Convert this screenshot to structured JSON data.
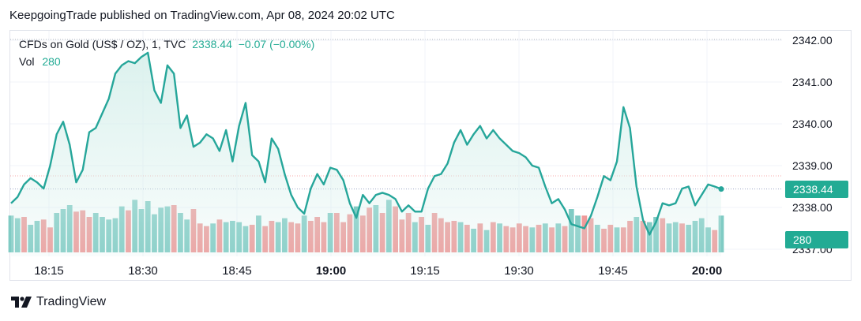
{
  "header": {
    "text": "KeepgoingTrade published on TradingView.com, Apr 08, 2024 20:02 UTC"
  },
  "legend": {
    "symbol": "CFDs on Gold (US$ / OZ), 1, TVC",
    "price": "2338.44",
    "change": "−0.07 (−0.00%)",
    "vol_label": "Vol",
    "vol_value": "280"
  },
  "badges": {
    "price": "2338.44",
    "volume": "280"
  },
  "footer": {
    "brand": "TradingView"
  },
  "colors": {
    "line": "#26a69a",
    "area": "#d8f0ec",
    "vol_up": "#80cbc4",
    "vol_down": "#ef9a9a",
    "badge": "#22ab94",
    "grid": "#f0f3fa",
    "text": "#131722"
  },
  "chart_data": {
    "type": "area",
    "ylim": [
      2337,
      2342
    ],
    "y_ticks": [
      "2342.00",
      "2341.00",
      "2340.00",
      "2339.00",
      "2338.00",
      "2337.00"
    ],
    "x_tick_labels": [
      "18:15",
      "18:30",
      "18:45",
      "19:00",
      "19:15",
      "19:30",
      "19:45",
      "20:00"
    ],
    "bold_ticks": [
      "19:00",
      "20:00"
    ],
    "last_price": 2338.44,
    "last_volume": 280,
    "series": [
      {
        "values": [
          2338.1,
          2338.25,
          2338.55,
          2338.7,
          2338.6,
          2338.45,
          2339.0,
          2339.75,
          2340.05,
          2339.5,
          2338.6,
          2338.9,
          2339.8,
          2339.9,
          2340.25,
          2340.6,
          2341.2,
          2341.4,
          2341.5,
          2341.45,
          2341.6,
          2341.7,
          2340.8,
          2340.5,
          2341.4,
          2341.2,
          2339.9,
          2340.2,
          2339.45,
          2339.55,
          2339.75,
          2339.65,
          2339.35,
          2339.85,
          2339.1,
          2339.95,
          2340.5,
          2339.25,
          2339.1,
          2338.6,
          2339.65,
          2339.4,
          2338.8,
          2338.3,
          2338.0,
          2337.85,
          2338.45,
          2338.8,
          2338.55,
          2338.95,
          2338.9,
          2338.65,
          2338.1,
          2337.75,
          2338.3,
          2338.1,
          2338.3,
          2338.35,
          2338.3,
          2338.2,
          2337.9,
          2338.05,
          2337.9,
          2337.9,
          2338.45,
          2338.75,
          2338.8,
          2339.05,
          2339.55,
          2339.85,
          2339.5,
          2339.75,
          2339.95,
          2339.65,
          2339.85,
          2339.65,
          2339.5,
          2339.35,
          2339.3,
          2339.2,
          2339.0,
          2338.95,
          2338.5,
          2338.1,
          2338.2,
          2337.95,
          2337.6,
          2337.55,
          2337.5,
          2337.8,
          2338.25,
          2338.75,
          2338.65,
          2339.1,
          2340.4,
          2339.9,
          2338.5,
          2337.7,
          2337.35,
          2337.65,
          2338.1,
          2338.05,
          2338.1,
          2338.45,
          2338.5,
          2338.05,
          2338.3,
          2338.55,
          2338.5,
          2338.44
        ]
      }
    ],
    "volume": [
      {
        "v": 280,
        "up": true
      },
      {
        "v": 260,
        "up": true
      },
      {
        "v": 270,
        "up": false
      },
      {
        "v": 210,
        "up": true
      },
      {
        "v": 240,
        "up": true
      },
      {
        "v": 250,
        "up": false
      },
      {
        "v": 190,
        "up": false
      },
      {
        "v": 300,
        "up": true
      },
      {
        "v": 330,
        "up": true
      },
      {
        "v": 360,
        "up": true
      },
      {
        "v": 310,
        "up": false
      },
      {
        "v": 320,
        "up": false
      },
      {
        "v": 270,
        "up": false
      },
      {
        "v": 300,
        "up": true
      },
      {
        "v": 270,
        "up": true
      },
      {
        "v": 250,
        "up": true
      },
      {
        "v": 260,
        "up": true
      },
      {
        "v": 350,
        "up": true
      },
      {
        "v": 320,
        "up": false
      },
      {
        "v": 400,
        "up": true
      },
      {
        "v": 330,
        "up": true
      },
      {
        "v": 390,
        "up": true
      },
      {
        "v": 290,
        "up": true
      },
      {
        "v": 340,
        "up": true
      },
      {
        "v": 350,
        "up": true
      },
      {
        "v": 360,
        "up": false
      },
      {
        "v": 300,
        "up": true
      },
      {
        "v": 250,
        "up": true
      },
      {
        "v": 330,
        "up": false
      },
      {
        "v": 220,
        "up": false
      },
      {
        "v": 200,
        "up": false
      },
      {
        "v": 220,
        "up": true
      },
      {
        "v": 250,
        "up": false
      },
      {
        "v": 230,
        "up": true
      },
      {
        "v": 240,
        "up": true
      },
      {
        "v": 230,
        "up": true
      },
      {
        "v": 200,
        "up": true
      },
      {
        "v": 210,
        "up": false
      },
      {
        "v": 280,
        "up": true
      },
      {
        "v": 200,
        "up": false
      },
      {
        "v": 240,
        "up": false
      },
      {
        "v": 230,
        "up": true
      },
      {
        "v": 260,
        "up": true
      },
      {
        "v": 230,
        "up": false
      },
      {
        "v": 220,
        "up": false
      },
      {
        "v": 280,
        "up": true
      },
      {
        "v": 240,
        "up": false
      },
      {
        "v": 270,
        "up": false
      },
      {
        "v": 230,
        "up": false
      },
      {
        "v": 300,
        "up": true
      },
      {
        "v": 300,
        "up": false
      },
      {
        "v": 230,
        "up": false
      },
      {
        "v": 290,
        "up": false
      },
      {
        "v": 350,
        "up": true
      },
      {
        "v": 280,
        "up": false
      },
      {
        "v": 340,
        "up": false
      },
      {
        "v": 360,
        "up": true
      },
      {
        "v": 300,
        "up": false
      },
      {
        "v": 400,
        "up": true
      },
      {
        "v": 350,
        "up": false
      },
      {
        "v": 250,
        "up": false
      },
      {
        "v": 300,
        "up": false
      },
      {
        "v": 230,
        "up": true
      },
      {
        "v": 270,
        "up": false
      },
      {
        "v": 210,
        "up": true
      },
      {
        "v": 300,
        "up": false
      },
      {
        "v": 260,
        "up": false
      },
      {
        "v": 230,
        "up": false
      },
      {
        "v": 240,
        "up": false
      },
      {
        "v": 230,
        "up": true
      },
      {
        "v": 210,
        "up": false
      },
      {
        "v": 180,
        "up": true
      },
      {
        "v": 220,
        "up": false
      },
      {
        "v": 170,
        "up": true
      },
      {
        "v": 230,
        "up": false
      },
      {
        "v": 220,
        "up": true
      },
      {
        "v": 200,
        "up": false
      },
      {
        "v": 190,
        "up": false
      },
      {
        "v": 220,
        "up": false
      },
      {
        "v": 200,
        "up": false
      },
      {
        "v": 190,
        "up": true
      },
      {
        "v": 210,
        "up": false
      },
      {
        "v": 220,
        "up": true
      },
      {
        "v": 190,
        "up": false
      },
      {
        "v": 220,
        "up": true
      },
      {
        "v": 200,
        "up": false
      },
      {
        "v": 330,
        "up": true
      },
      {
        "v": 280,
        "up": true
      },
      {
        "v": 280,
        "up": false
      },
      {
        "v": 260,
        "up": false
      },
      {
        "v": 210,
        "up": true
      },
      {
        "v": 180,
        "up": false
      },
      {
        "v": 210,
        "up": false
      },
      {
        "v": 190,
        "up": true
      },
      {
        "v": 190,
        "up": false
      },
      {
        "v": 240,
        "up": false
      },
      {
        "v": 270,
        "up": true
      },
      {
        "v": 240,
        "up": false
      },
      {
        "v": 230,
        "up": true
      },
      {
        "v": 270,
        "up": true
      },
      {
        "v": 260,
        "up": false
      },
      {
        "v": 220,
        "up": true
      },
      {
        "v": 230,
        "up": true
      },
      {
        "v": 220,
        "up": false
      },
      {
        "v": 210,
        "up": true
      },
      {
        "v": 240,
        "up": true
      },
      {
        "v": 260,
        "up": true
      },
      {
        "v": 190,
        "up": true
      },
      {
        "v": 170,
        "up": false
      },
      {
        "v": 280,
        "up": true
      }
    ]
  }
}
